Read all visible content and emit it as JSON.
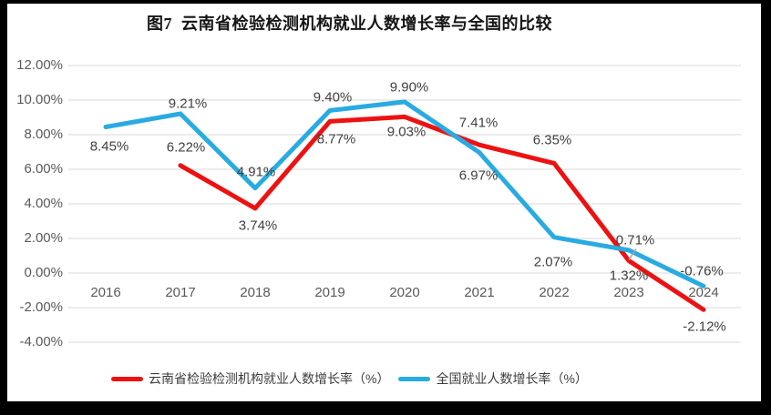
{
  "window": {
    "background_color": "#000000",
    "card_background_color": "#ffffff"
  },
  "chart_data": {
    "type": "line",
    "title": "图7  云南省检验检测机构就业人数增长率与全国的比较",
    "categories": [
      "2016",
      "2017",
      "2018",
      "2019",
      "2020",
      "2021",
      "2022",
      "2023",
      "2024"
    ],
    "series": [
      {
        "name": "云南省检验检测机构就业人数增长率（%）",
        "color": "#ee1111",
        "values": [
          null,
          6.22,
          3.74,
          8.77,
          9.03,
          7.41,
          6.35,
          0.71,
          -2.12
        ],
        "point_labels": [
          "",
          "6.22%",
          "3.74%",
          "8.77%",
          "9.03%",
          "7.41%",
          "6.35%",
          "0.71%",
          "-2.12%"
        ]
      },
      {
        "name": "全国就业人数增长率（%）",
        "color": "#29abe2",
        "values": [
          8.45,
          9.21,
          4.91,
          9.4,
          9.9,
          6.97,
          2.07,
          1.32,
          -0.76
        ],
        "point_labels": [
          "8.45%",
          "9.21%",
          "4.91%",
          "9.40%",
          "9.90%",
          "6.97%",
          "2.07%",
          "1.32%",
          "-0.76%"
        ]
      }
    ],
    "y_axis": {
      "min": -4,
      "max": 12,
      "step": 2,
      "tick_labels": [
        "12.00%",
        "10.00%",
        "8.00%",
        "6.00%",
        "4.00%",
        "2.00%",
        "0.00%",
        "-2.00%",
        "-4.00%"
      ]
    },
    "grid": true,
    "legend_position": "bottom",
    "gridline_color": "#d9d9d9",
    "axis_text_color": "#595959",
    "data_label_color": "#404040",
    "leader_line_color": "#a6a6a6"
  }
}
